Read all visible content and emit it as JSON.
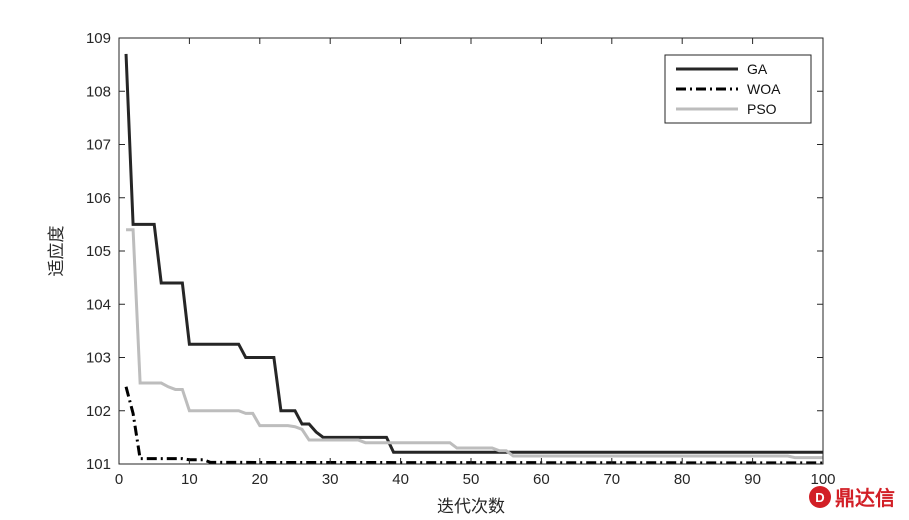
{
  "chart_data": {
    "type": "line",
    "xlabel": "迭代次数",
    "ylabel": "适应度",
    "xlim": [
      0,
      100
    ],
    "ylim": [
      101,
      109
    ],
    "xticks": [
      0,
      10,
      20,
      30,
      40,
      50,
      60,
      70,
      80,
      90,
      100
    ],
    "yticks": [
      101,
      102,
      103,
      104,
      105,
      106,
      107,
      108,
      109
    ],
    "grid": false,
    "legend_position": "top-right",
    "series": [
      {
        "name": "GA",
        "color": "#262626",
        "style": "solid",
        "x": [
          1,
          2,
          5,
          6,
          9,
          10,
          17,
          18,
          22,
          23,
          25,
          26,
          27,
          28,
          29,
          38,
          39,
          100
        ],
        "y": [
          108.7,
          105.5,
          105.5,
          104.4,
          104.4,
          103.25,
          103.25,
          103.0,
          103.0,
          102.0,
          102.0,
          101.75,
          101.75,
          101.6,
          101.5,
          101.5,
          101.22,
          101.22
        ]
      },
      {
        "name": "WOA",
        "color": "#000000",
        "style": "dashdot",
        "x": [
          1,
          2,
          3,
          9,
          10,
          12,
          13,
          100
        ],
        "y": [
          102.45,
          101.95,
          101.1,
          101.1,
          101.08,
          101.08,
          101.03,
          101.02
        ]
      },
      {
        "name": "PSO",
        "color": "#bdbdbd",
        "style": "solid",
        "x": [
          1,
          2,
          3,
          6,
          7,
          8,
          9,
          10,
          17,
          18,
          19,
          20,
          24,
          25,
          26,
          27,
          34,
          35,
          47,
          48,
          53,
          54,
          55,
          56,
          95,
          96,
          100
        ],
        "y": [
          105.4,
          105.4,
          102.52,
          102.52,
          102.45,
          102.4,
          102.4,
          102.0,
          102.0,
          101.95,
          101.95,
          101.72,
          101.72,
          101.7,
          101.65,
          101.45,
          101.45,
          101.4,
          101.4,
          101.3,
          101.3,
          101.25,
          101.25,
          101.15,
          101.15,
          101.12,
          101.12
        ]
      }
    ]
  },
  "watermark": {
    "text": "鼎达信",
    "logo_letter": "D",
    "color": "#d21f26"
  }
}
